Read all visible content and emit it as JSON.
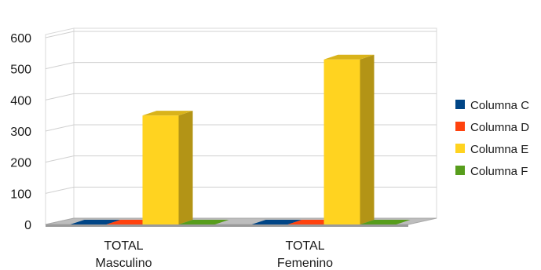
{
  "chart_data": {
    "type": "bar",
    "style": "3d-clustered-column",
    "categories": [
      "TOTAL\nMasculino",
      "TOTAL\nFemenino"
    ],
    "series": [
      {
        "name": "Columna C",
        "values": [
          0,
          0
        ],
        "color": "#004586"
      },
      {
        "name": "Columna D",
        "values": [
          0,
          0
        ],
        "color": "#ff420e"
      },
      {
        "name": "Columna E",
        "values": [
          350,
          530
        ],
        "color": "#ffd320"
      },
      {
        "name": "Columna F",
        "values": [
          0,
          0
        ],
        "color": "#579d1c"
      }
    ],
    "y_ticks": [
      "0",
      "100",
      "200",
      "300",
      "400",
      "500",
      "600"
    ],
    "ylim": [
      0,
      600
    ],
    "grid": true,
    "legend_position": "right",
    "title": "",
    "xlabel": "",
    "ylabel": ""
  }
}
